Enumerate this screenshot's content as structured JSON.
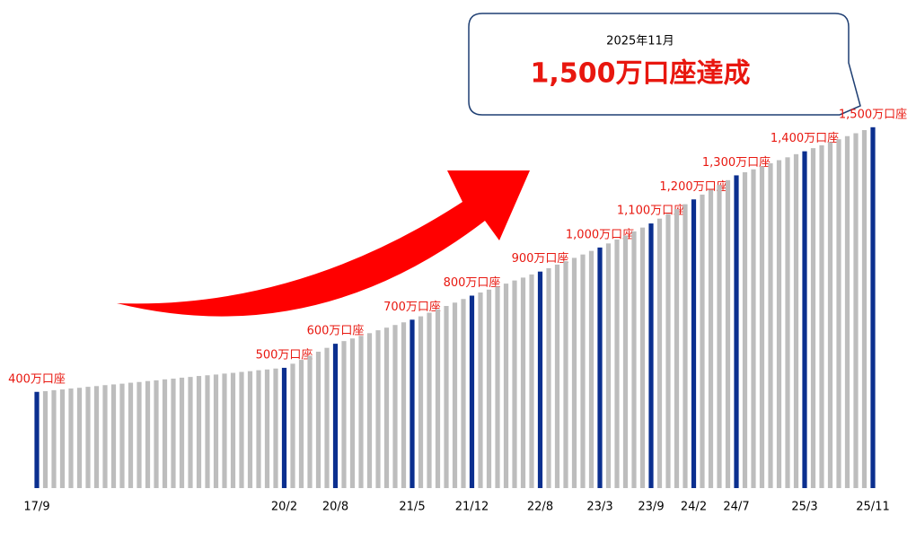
{
  "chart_data": {
    "type": "bar",
    "annotation": {
      "date": "2025年11月",
      "text": "1,500万口座達成"
    },
    "categories": [
      "17/9",
      null,
      null,
      null,
      null,
      null,
      null,
      null,
      null,
      null,
      null,
      null,
      null,
      null,
      null,
      null,
      null,
      null,
      null,
      null,
      null,
      null,
      null,
      null,
      null,
      null,
      null,
      null,
      null,
      "20/2",
      null,
      null,
      null,
      null,
      null,
      "20/8",
      null,
      null,
      null,
      null,
      null,
      null,
      null,
      null,
      "21/5",
      null,
      null,
      null,
      null,
      null,
      null,
      "21/12",
      null,
      null,
      null,
      null,
      null,
      null,
      null,
      "22/8",
      null,
      null,
      null,
      null,
      null,
      null,
      "23/3",
      null,
      null,
      null,
      null,
      null,
      "23/9",
      null,
      null,
      null,
      null,
      "24/2",
      null,
      null,
      null,
      null,
      "24/7",
      null,
      null,
      null,
      null,
      null,
      null,
      null,
      "25/3",
      null,
      null,
      null,
      null,
      null,
      null,
      null,
      "25/11"
    ],
    "values": [
      400,
      403,
      407,
      410,
      414,
      417,
      421,
      424,
      428,
      431,
      434,
      438,
      441,
      445,
      448,
      452,
      455,
      459,
      462,
      466,
      469,
      472,
      476,
      479,
      483,
      486,
      490,
      493,
      497,
      500,
      517,
      533,
      550,
      567,
      583,
      600,
      611,
      622,
      633,
      644,
      656,
      667,
      678,
      689,
      700,
      714,
      729,
      743,
      757,
      771,
      786,
      800,
      813,
      825,
      838,
      850,
      863,
      875,
      888,
      900,
      914,
      929,
      943,
      957,
      971,
      986,
      1000,
      1017,
      1033,
      1050,
      1067,
      1083,
      1100,
      1120,
      1140,
      1160,
      1180,
      1200,
      1220,
      1240,
      1260,
      1280,
      1300,
      1313,
      1325,
      1338,
      1350,
      1363,
      1375,
      1388,
      1400,
      1413,
      1425,
      1438,
      1450,
      1463,
      1475,
      1488,
      1500
    ],
    "value_labels": [
      "400万口座",
      null,
      null,
      null,
      null,
      null,
      null,
      null,
      null,
      null,
      null,
      null,
      null,
      null,
      null,
      null,
      null,
      null,
      null,
      null,
      null,
      null,
      null,
      null,
      null,
      null,
      null,
      null,
      null,
      "500万口座",
      null,
      null,
      null,
      null,
      null,
      "600万口座",
      null,
      null,
      null,
      null,
      null,
      null,
      null,
      null,
      "700万口座",
      null,
      null,
      null,
      null,
      null,
      null,
      "800万口座",
      null,
      null,
      null,
      null,
      null,
      null,
      null,
      "900万口座",
      null,
      null,
      null,
      null,
      null,
      null,
      "1,000万口座",
      null,
      null,
      null,
      null,
      null,
      "1,100万口座",
      null,
      null,
      null,
      null,
      "1,200万口座",
      null,
      null,
      null,
      null,
      "1,300万口座",
      null,
      null,
      null,
      null,
      null,
      null,
      null,
      "1,400万口座",
      null,
      null,
      null,
      null,
      null,
      null,
      null,
      "1,500万口座"
    ],
    "color": "#bdbdbd",
    "highlight_color": "#0b2f8f",
    "label_color": "#e8170f",
    "ylim": [
      0,
      1600
    ]
  }
}
